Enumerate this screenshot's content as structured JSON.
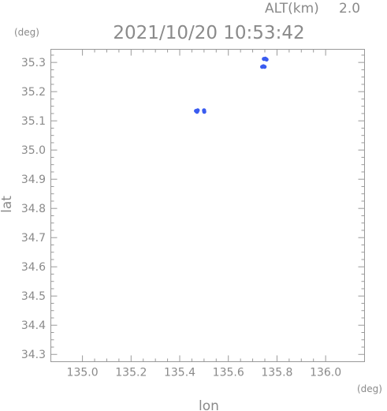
{
  "header": {
    "alt_label": "ALT(km)",
    "alt_value": "2.0",
    "timestamp": "2021/10/20 10:53:42"
  },
  "chart_data": {
    "type": "scatter",
    "title": "2021/10/20 10:53:42",
    "xlabel": "lon",
    "ylabel": "lat",
    "x_unit": "(deg)",
    "y_unit": "(deg)",
    "xlim": [
      134.87,
      136.16
    ],
    "ylim": [
      34.275,
      35.345
    ],
    "x_ticks": [
      "135.0",
      "135.2",
      "135.4",
      "135.6",
      "135.8",
      "136.0"
    ],
    "y_ticks": [
      "35.3",
      "35.2",
      "35.1",
      "35.0",
      "34.9",
      "34.8",
      "34.7",
      "34.6",
      "34.5",
      "34.4",
      "34.3"
    ],
    "grid": false,
    "marker_color": "#3a5cf0",
    "points": [
      {
        "x": 135.467,
        "y": 35.134
      },
      {
        "x": 135.471,
        "y": 35.131
      },
      {
        "x": 135.474,
        "y": 35.136
      },
      {
        "x": 135.5,
        "y": 35.136
      },
      {
        "x": 135.501,
        "y": 35.131
      },
      {
        "x": 135.739,
        "y": 35.285
      },
      {
        "x": 135.744,
        "y": 35.287
      },
      {
        "x": 135.749,
        "y": 35.285
      },
      {
        "x": 135.746,
        "y": 35.312
      },
      {
        "x": 135.752,
        "y": 35.313
      },
      {
        "x": 135.757,
        "y": 35.31
      }
    ]
  }
}
